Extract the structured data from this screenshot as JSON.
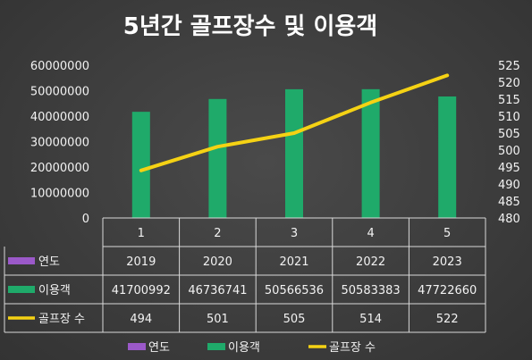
{
  "chart_data": {
    "type": "bar",
    "title": "5년간 골프장수 및 이용객",
    "categories": [
      "1",
      "2",
      "3",
      "4",
      "5"
    ],
    "series": [
      {
        "name": "연도",
        "values": [
          2019,
          2020,
          2021,
          2022,
          2023
        ],
        "color": "#9b59c9"
      },
      {
        "name": "이용객",
        "values": [
          41700992,
          46736741,
          50566536,
          50583383,
          47722660
        ],
        "color": "#1faa6a",
        "axis": "left"
      },
      {
        "name": "골프장 수",
        "values": [
          494,
          501,
          505,
          514,
          522
        ],
        "color": "#f5d214",
        "type": "line",
        "axis": "right"
      }
    ],
    "table_rows": [
      {
        "label": "연도",
        "cells": [
          "2019",
          "2020",
          "2021",
          "2022",
          "2023"
        ]
      },
      {
        "label": "이용객",
        "cells": [
          "41700992",
          "46736741",
          "50566536",
          "50583383",
          "47722660"
        ]
      },
      {
        "label": "골프장 수",
        "cells": [
          "494",
          "501",
          "505",
          "514",
          "522"
        ]
      }
    ],
    "y_left": {
      "min": 0,
      "max": 60000000,
      "ticks": [
        "0",
        "10000000",
        "20000000",
        "30000000",
        "40000000",
        "50000000",
        "60000000"
      ]
    },
    "y_right": {
      "min": 480,
      "max": 525,
      "ticks": [
        "480",
        "485",
        "490",
        "495",
        "500",
        "505",
        "510",
        "515",
        "520",
        "525"
      ]
    },
    "legend": [
      {
        "label": "연도",
        "color": "#9b59c9",
        "shape": "square"
      },
      {
        "label": "이용객",
        "color": "#1faa6a",
        "shape": "square"
      },
      {
        "label": "골프장 수",
        "color": "#f5d214",
        "shape": "line"
      }
    ],
    "legend_position": "bottom",
    "grid": false
  }
}
